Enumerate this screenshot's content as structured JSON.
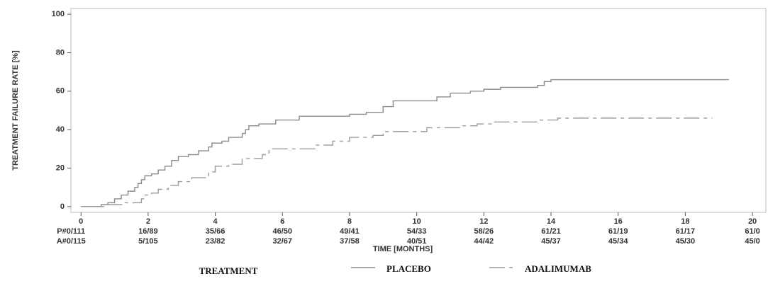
{
  "chart_data": {
    "type": "line",
    "step": "post",
    "y_label": "TREATMENT FAILURE RATE [%]",
    "x_label": "TIME [MONTHS]",
    "xlim": [
      -0.3,
      20.4
    ],
    "ylim": [
      -3,
      103
    ],
    "xticks": [
      0,
      2,
      4,
      6,
      8,
      10,
      12,
      14,
      16,
      18,
      20
    ],
    "yticks": [
      0,
      20,
      40,
      60,
      80,
      100
    ],
    "legend_title": "TREATMENT",
    "series": [
      {
        "name": "PLACEBO",
        "color": "#8a8a8a",
        "style": "solid",
        "x": [
          0,
          0.6,
          0.8,
          1.0,
          1.2,
          1.4,
          1.6,
          1.7,
          1.8,
          1.9,
          2.1,
          2.3,
          2.5,
          2.7,
          2.9,
          3.2,
          3.5,
          3.8,
          3.9,
          4.2,
          4.4,
          4.8,
          4.9,
          5.0,
          5.3,
          5.8,
          6.5,
          8.0,
          8.5,
          9.0,
          9.3,
          10.6,
          11.0,
          11.6,
          12.0,
          12.5,
          13.6,
          13.8,
          14.0,
          19.3
        ],
        "values": [
          0,
          1,
          2,
          4,
          6,
          8,
          10,
          12,
          14,
          16,
          17,
          19,
          21,
          24,
          26,
          27,
          29,
          31,
          33,
          34,
          36,
          38,
          40,
          42,
          43,
          45,
          47,
          48,
          49,
          52,
          55,
          57,
          59,
          60,
          61,
          62,
          63,
          65,
          66,
          66
        ]
      },
      {
        "name": "ADALIMUMAB",
        "color": "#9a9a9a",
        "style": "dashdot",
        "x": [
          0,
          0.7,
          1.3,
          1.8,
          1.9,
          2.1,
          2.3,
          2.6,
          2.9,
          3.3,
          3.8,
          4.0,
          4.4,
          4.8,
          5.4,
          5.6,
          7.0,
          7.5,
          8.0,
          8.7,
          9.0,
          10.3,
          11.3,
          11.8,
          12.3,
          13.6,
          14.2,
          18.8
        ],
        "values": [
          0,
          1,
          2,
          4,
          6,
          7,
          9,
          11,
          13,
          15,
          18,
          21,
          22,
          25,
          27,
          30,
          32,
          34,
          36,
          37,
          39,
          41,
          42,
          43,
          44,
          45,
          46,
          46
        ]
      }
    ],
    "risk_table": [
      [
        "P#0/111",
        "16/89",
        "35/66",
        "46/50",
        "49/41",
        "54/33",
        "58/26",
        "61/21",
        "61/19",
        "61/17",
        "61/0"
      ],
      [
        "A#0/115",
        "5/105",
        "23/82",
        "32/67",
        "37/58",
        "40/51",
        "44/42",
        "45/37",
        "45/34",
        "45/30",
        "45/0"
      ]
    ]
  }
}
